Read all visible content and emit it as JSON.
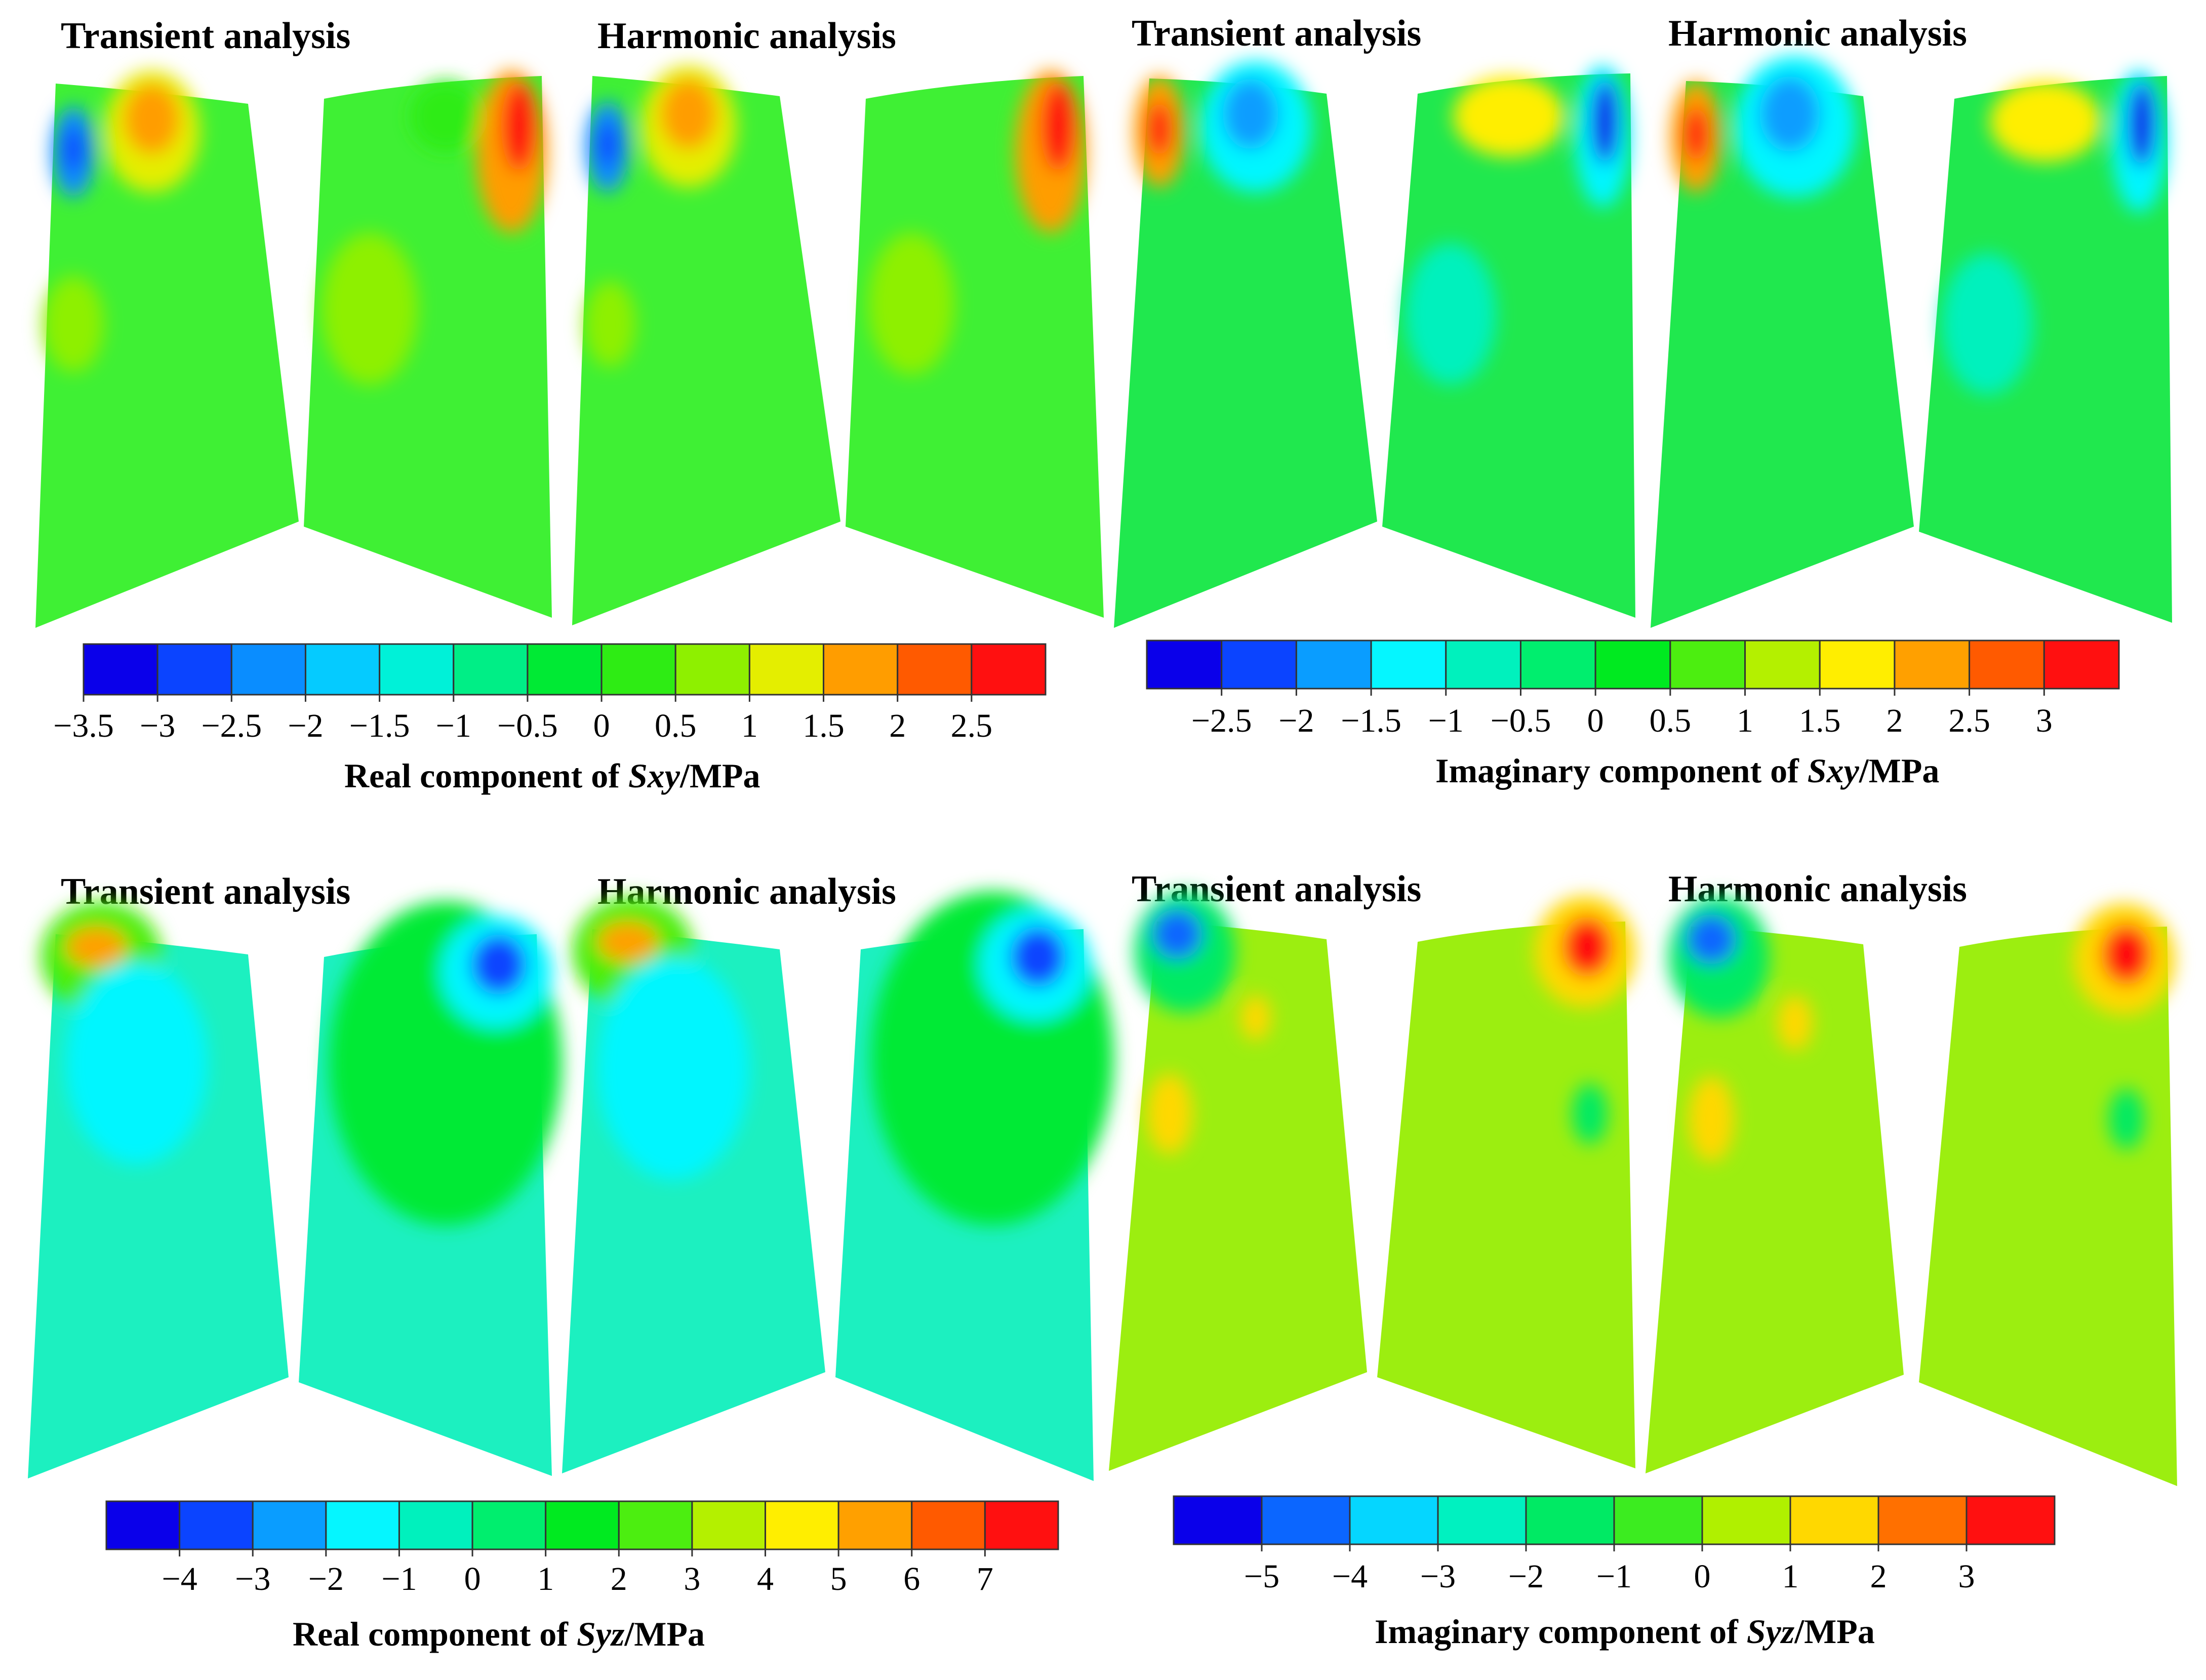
{
  "panels": [
    {
      "titles": [
        "Transient analysis",
        "Harmonic analysis"
      ],
      "colorbar": {
        "ticks": [
          "−3.5",
          "−3",
          "−2.5",
          "−2",
          "−1.5",
          "−1",
          "−0.5",
          "0",
          "0.5",
          "1",
          "1.5",
          "2",
          "2.5"
        ],
        "colors": [
          "#0a00ea",
          "#0b44ff",
          "#0a8dff",
          "#05cbff",
          "#00f1d8",
          "#00ee86",
          "#00ea34",
          "#2eec14",
          "#8ef000",
          "#e4ee00",
          "#ff9d00",
          "#ff5a00",
          "#ff1010"
        ]
      },
      "caption": {
        "prefix": "Real component of ",
        "var": "Sxy",
        "suffix": "/MPa"
      },
      "blade_fill": "#3ff034"
    },
    {
      "titles": [
        "Transient analysis",
        "Harmonic analysis"
      ],
      "colorbar": {
        "ticks": [
          "−2.5",
          "−2",
          "−1.5",
          "−1",
          "−0.5",
          "0",
          "0.5",
          "1",
          "1.5",
          "2",
          "2.5",
          "3"
        ],
        "colors": [
          "#0a00ea",
          "#0b44ff",
          "#0a9dff",
          "#05f6ff",
          "#00f1bd",
          "#00ee6e",
          "#00ea20",
          "#4cee10",
          "#b4f000",
          "#ffee00",
          "#ffa000",
          "#ff5a00",
          "#ff1010"
        ]
      },
      "caption": {
        "prefix": "Imaginary component of ",
        "var": "Sxy",
        "suffix": "/MPa"
      },
      "blade_fill": "#20e84e"
    },
    {
      "titles": [
        "Transient analysis",
        "Harmonic analysis"
      ],
      "colorbar": {
        "ticks": [
          "−4",
          "−3",
          "−2",
          "−1",
          "0",
          "1",
          "2",
          "3",
          "4",
          "5",
          "6",
          "7"
        ],
        "colors": [
          "#0a00ea",
          "#0b44ff",
          "#0a9dff",
          "#05f6ff",
          "#00f1bd",
          "#00ee6e",
          "#00ea20",
          "#4cee10",
          "#b4f000",
          "#ffee00",
          "#ffa000",
          "#ff5a00",
          "#ff1010"
        ]
      },
      "caption": {
        "prefix": "Real component of ",
        "var": "Syz",
        "suffix": "/MPa"
      },
      "blade_fill": "#1cf0c0"
    },
    {
      "titles": [
        "Transient analysis",
        "Harmonic analysis"
      ],
      "colorbar": {
        "ticks": [
          "−5",
          "−4",
          "−3",
          "−2",
          "−1",
          "0",
          "1",
          "2",
          "3"
        ],
        "colors": [
          "#0a00ea",
          "#0b66ff",
          "#05d6ff",
          "#00f1c0",
          "#00ea64",
          "#3cec20",
          "#b0f000",
          "#ffd800",
          "#ff7000",
          "#ff1010"
        ]
      },
      "caption": {
        "prefix": "Imaginary component of ",
        "var": "Syz",
        "suffix": "/MPa"
      },
      "blade_fill": "#9cee10"
    }
  ]
}
